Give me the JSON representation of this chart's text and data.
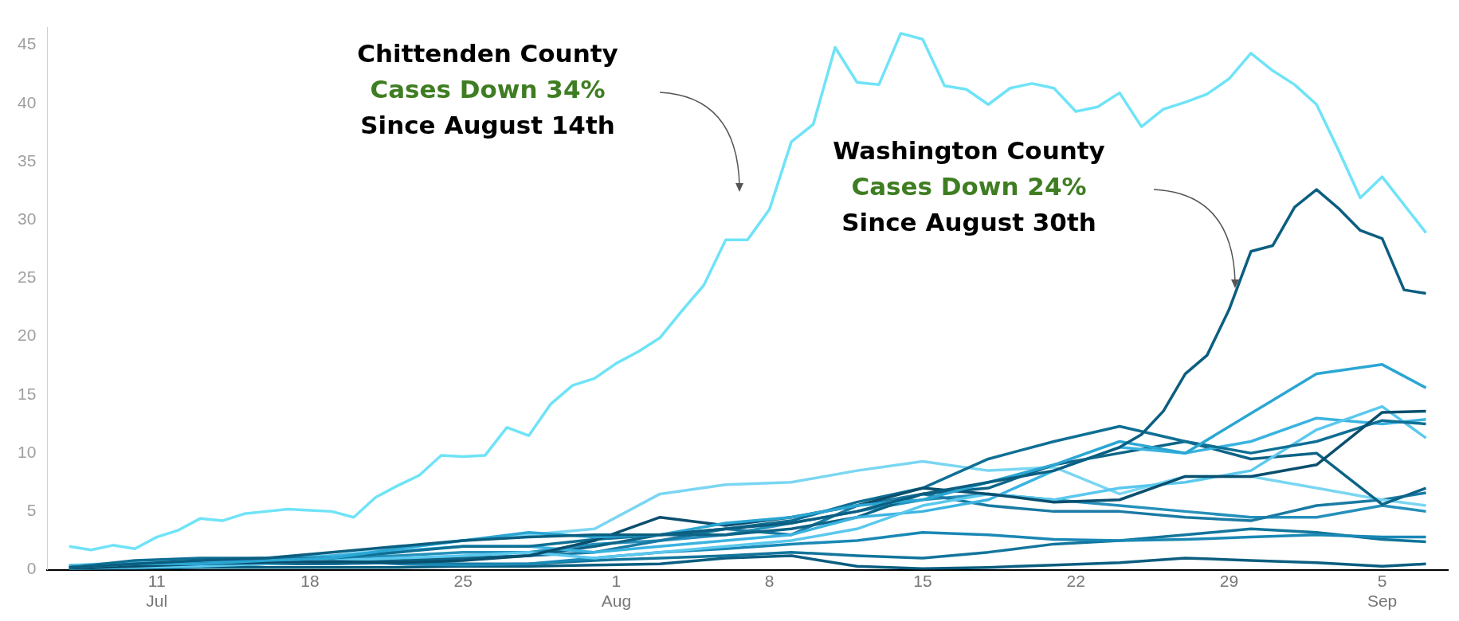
{
  "chart_data": {
    "type": "line",
    "x": [
      "--07-07",
      "--07-10",
      "--07-13",
      "--07-16",
      "--07-19",
      "--07-22",
      "--07-25",
      "--07-28",
      "--07-31",
      "--08-03",
      "--08-06",
      "--08-09",
      "--08-12",
      "--08-15",
      "--08-18",
      "--08-21",
      "--08-24",
      "--08-27",
      "--08-30",
      "--09-02",
      "--09-05",
      "--09-07"
    ],
    "series": [
      {
        "color": "#6fe3f7",
        "x": [
          "--07-07",
          "--07-08",
          "--07-09",
          "--07-10",
          "--07-11",
          "--07-12",
          "--07-13",
          "--07-14",
          "--07-15",
          "--07-16",
          "--07-17",
          "--07-18",
          "--07-19",
          "--07-20",
          "--07-21",
          "--07-22",
          "--07-23",
          "--07-24",
          "--07-25",
          "--07-26",
          "--07-27",
          "--07-28",
          "--07-29",
          "--07-30",
          "--07-31",
          "--08-01",
          "--08-02",
          "--08-03",
          "--08-04",
          "--08-05",
          "--08-06",
          "--08-07",
          "--08-08",
          "--08-09",
          "--08-10",
          "--08-11",
          "--08-12",
          "--08-13",
          "--08-14",
          "--08-15",
          "--08-16",
          "--08-17",
          "--08-18",
          "--08-19",
          "--08-20",
          "--08-21",
          "--08-22",
          "--08-23",
          "--08-24",
          "--08-25",
          "--08-26",
          "--08-27",
          "--08-28",
          "--08-29",
          "--08-30",
          "--08-31",
          "--09-01",
          "--09-02",
          "--09-03",
          "--09-04",
          "--09-05",
          "--09-06",
          "--09-07"
        ],
        "values": [
          2.0,
          1.7,
          2.1,
          1.8,
          2.8,
          3.4,
          4.4,
          4.2,
          4.8,
          5.0,
          5.2,
          5.1,
          5.0,
          4.5,
          6.2,
          7.2,
          8.1,
          9.8,
          9.7,
          9.8,
          12.2,
          11.5,
          14.2,
          15.8,
          16.4,
          17.7,
          18.7,
          19.9,
          22.2,
          24.4,
          28.3,
          28.3,
          30.9,
          36.7,
          38.2,
          44.8,
          41.8,
          41.6,
          46.0,
          45.5,
          41.5,
          41.2,
          39.9,
          41.3,
          41.7,
          41.3,
          39.3,
          39.7,
          40.9,
          38.0,
          39.5,
          40.1,
          40.8,
          42.1,
          44.3,
          42.8,
          41.6,
          39.9,
          36.0,
          31.9,
          33.7,
          31.3,
          28.9
        ]
      },
      {
        "color": "#0b5e80",
        "x": [
          "--07-07",
          "--07-10",
          "--07-13",
          "--07-16",
          "--07-19",
          "--07-22",
          "--07-25",
          "--07-28",
          "--07-31",
          "--08-03",
          "--08-06",
          "--08-09",
          "--08-12",
          "--08-15",
          "--08-18",
          "--08-21",
          "--08-24",
          "--08-25",
          "--08-26",
          "--08-27",
          "--08-28",
          "--08-29",
          "--08-30",
          "--08-31",
          "--09-01",
          "--09-02",
          "--09-03",
          "--09-04",
          "--09-05",
          "--09-06",
          "--09-07"
        ],
        "values": [
          0.2,
          0.5,
          0.8,
          1.0,
          1.5,
          2.0,
          2.5,
          2.8,
          3.0,
          3.0,
          3.5,
          4.0,
          5.0,
          6.5,
          7.5,
          8.5,
          10.5,
          11.6,
          13.6,
          16.8,
          18.4,
          22.3,
          27.3,
          27.8,
          31.1,
          32.6,
          31.0,
          29.1,
          28.4,
          24.0,
          23.7
        ]
      },
      {
        "color": "#2ba6d3",
        "values": [
          0.2,
          0.5,
          0.5,
          0.8,
          1.0,
          1.8,
          2.5,
          3.2,
          2.8,
          3.0,
          4.0,
          4.5,
          5.5,
          6.0,
          7.5,
          9.0,
          11.0,
          10.0,
          13.4,
          16.8,
          17.6,
          15.6
        ]
      },
      {
        "color": "#0a4f6e",
        "values": [
          0.1,
          0.3,
          0.5,
          0.6,
          0.7,
          0.6,
          0.8,
          1.2,
          2.5,
          4.5,
          3.8,
          4.5,
          5.5,
          7.0,
          6.5,
          5.8,
          6.0,
          8.0,
          8.0,
          9.0,
          13.5,
          13.6
        ]
      },
      {
        "color": "#0f6f94",
        "values": [
          0.2,
          0.8,
          1.0,
          1.0,
          1.0,
          1.5,
          2.0,
          2.0,
          2.6,
          3.0,
          3.5,
          4.2,
          5.8,
          7.0,
          9.5,
          11.0,
          12.3,
          11.0,
          10.0,
          11.0,
          12.8,
          12.5
        ]
      },
      {
        "color": "#5bc8ee",
        "values": [
          0.1,
          0.2,
          0.3,
          0.5,
          0.8,
          1.0,
          1.2,
          1.5,
          1.0,
          1.5,
          2.0,
          2.5,
          3.5,
          5.5,
          6.5,
          6.0,
          7.0,
          7.5,
          8.5,
          12.0,
          14.0,
          11.3
        ]
      },
      {
        "color": "#3bb3e0",
        "values": [
          0.3,
          0.5,
          0.6,
          0.8,
          1.2,
          1.6,
          2.0,
          2.0,
          1.5,
          2.0,
          2.5,
          3.0,
          4.5,
          5.0,
          6.0,
          8.5,
          10.5,
          10.0,
          11.0,
          13.0,
          12.5,
          12.9
        ]
      },
      {
        "color": "#0d6487",
        "values": [
          0.3,
          0.5,
          0.4,
          0.5,
          0.6,
          0.8,
          1.0,
          1.2,
          2.0,
          3.0,
          3.0,
          3.5,
          4.5,
          6.5,
          7.0,
          9.0,
          10.0,
          11.0,
          9.5,
          10.0,
          5.6,
          7.0
        ]
      },
      {
        "color": "#7ad6f2",
        "values": [
          0.4,
          0.6,
          0.8,
          1.0,
          1.2,
          1.8,
          2.5,
          3.0,
          3.5,
          6.5,
          7.3,
          7.5,
          8.5,
          9.3,
          8.5,
          8.8,
          6.5,
          8.0,
          8.0,
          7.0,
          6.0,
          5.5
        ]
      },
      {
        "color": "#1a7aa3",
        "values": [
          0.1,
          0.2,
          0.3,
          0.5,
          0.5,
          0.8,
          1.0,
          1.2,
          1.5,
          2.5,
          3.5,
          3.0,
          5.5,
          6.5,
          5.5,
          5.0,
          5.0,
          4.5,
          4.2,
          5.5,
          6.0,
          6.6
        ]
      },
      {
        "color": "#2590bb",
        "values": [
          0.2,
          0.4,
          0.5,
          0.8,
          1.0,
          1.2,
          1.5,
          1.5,
          2.2,
          2.5,
          3.0,
          4.0,
          5.0,
          6.0,
          6.5,
          6.0,
          5.5,
          5.0,
          4.5,
          4.5,
          5.5,
          5.0
        ]
      },
      {
        "color": "#1a88b5",
        "values": [
          0.3,
          0.5,
          0.5,
          0.5,
          0.8,
          0.5,
          0.4,
          0.5,
          1.0,
          1.5,
          1.8,
          2.2,
          2.5,
          3.2,
          3.0,
          2.6,
          2.5,
          2.6,
          2.8,
          3.0,
          2.8,
          2.8
        ]
      },
      {
        "color": "#12759c",
        "values": [
          0.1,
          0.3,
          0.5,
          0.5,
          0.5,
          0.6,
          0.5,
          0.5,
          0.8,
          1.0,
          1.2,
          1.5,
          1.2,
          1.0,
          1.5,
          2.2,
          2.5,
          3.0,
          3.5,
          3.2,
          2.6,
          2.4
        ]
      },
      {
        "color": "#0b5e80",
        "values": [
          0.0,
          0.1,
          0.2,
          0.2,
          0.2,
          0.2,
          0.3,
          0.3,
          0.4,
          0.5,
          1.0,
          1.2,
          0.3,
          0.1,
          0.2,
          0.4,
          0.6,
          1.0,
          0.8,
          0.6,
          0.3,
          0.5
        ]
      }
    ],
    "xlim": [
      "--07-06",
      "--09-08"
    ],
    "xticks": [
      {
        "value": "--07-11",
        "label": "11\nJul"
      },
      {
        "value": "--07-18",
        "label": "18"
      },
      {
        "value": "--07-25",
        "label": "25"
      },
      {
        "value": "--08-01",
        "label": "1\nAug"
      },
      {
        "value": "--08-08",
        "label": "8"
      },
      {
        "value": "--08-15",
        "label": "15"
      },
      {
        "value": "--08-22",
        "label": "22"
      },
      {
        "value": "--08-29",
        "label": "29"
      },
      {
        "value": "--09-05",
        "label": "5\nSep"
      }
    ],
    "ylim": [
      0,
      46.5
    ],
    "yticks": [
      0,
      5,
      10,
      15,
      20,
      25,
      30,
      35,
      40,
      45
    ],
    "annotations": [
      "Chittenden County\nCases Down 34%\nSince August 14th",
      "Washington County\nCases Down 24%\nSince August 30th"
    ]
  }
}
